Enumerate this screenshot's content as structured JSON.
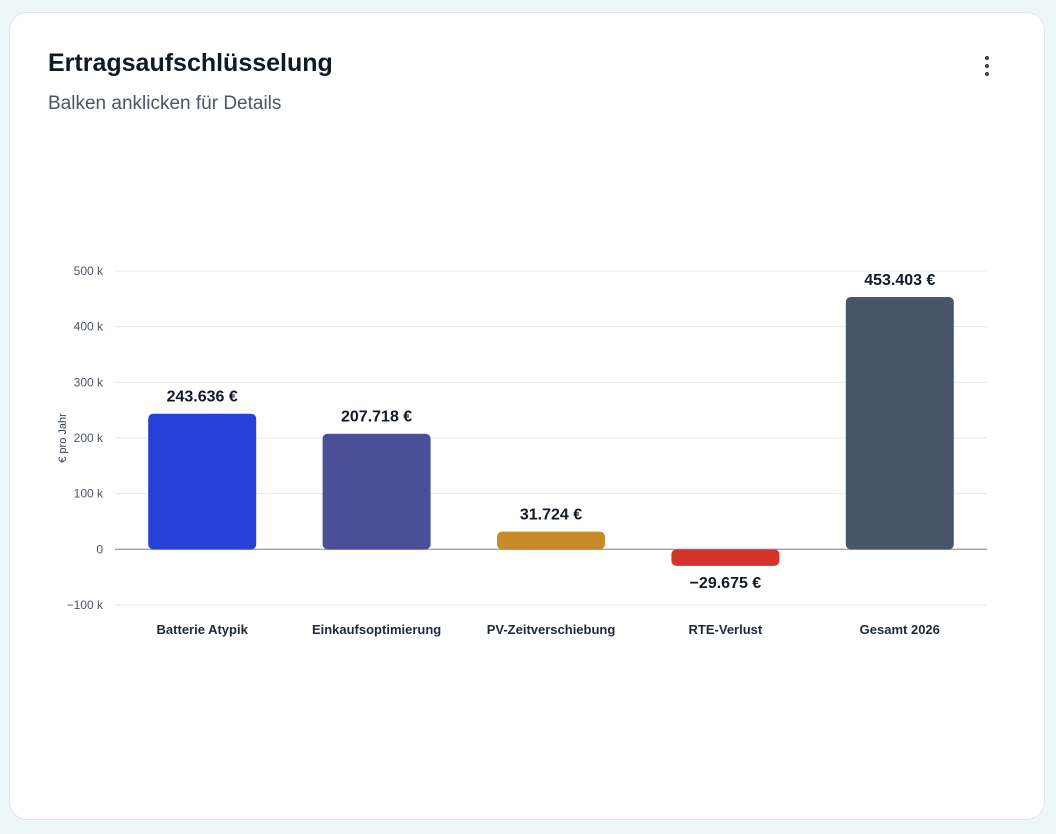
{
  "header": {
    "title": "Ertragsaufschlüsselung",
    "subtitle": "Balken anklicken für Details",
    "menu_icon": "more-vertical-icon"
  },
  "chart_data": {
    "type": "bar",
    "categories": [
      "Batterie Atypik",
      "Einkaufsoptimierung",
      "PV-Zeitverschiebung",
      "RTE-Verlust",
      "Gesamt 2026"
    ],
    "values": [
      243636,
      207718,
      31724,
      -29675,
      453403
    ],
    "data_labels": [
      "243.636 €",
      "207.718 €",
      "31.724 €",
      "−29.675 €",
      "453.403 €"
    ],
    "colors": [
      "#2840d6",
      "#4a4f98",
      "#c98a2a",
      "#d5332a",
      "#475569"
    ],
    "ylabel": "€ pro Jahr",
    "ylim": [
      -100000,
      500000
    ],
    "yticks": [
      500000,
      400000,
      300000,
      200000,
      100000,
      0,
      -100000
    ],
    "ytick_labels": [
      "500 k",
      "400 k",
      "300 k",
      "200 k",
      "100 k",
      "0",
      "−100 k"
    ],
    "grid": true
  }
}
